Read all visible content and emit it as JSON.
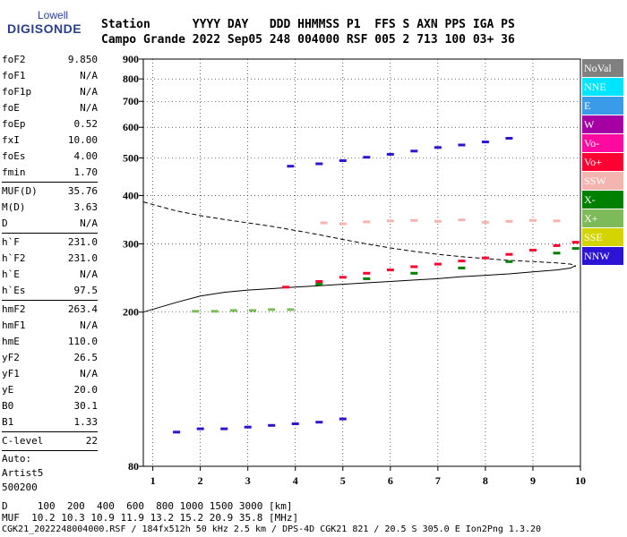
{
  "logo": {
    "top": "Lowell",
    "bottom": "DIGISONDE"
  },
  "header": {
    "line1": "Station      YYYY DAY   DDD HHMMSS P1  FFS S AXN PPS IGA PS",
    "line2": "Campo Grande 2022 Sep05 248 004000 RSF 005 2 713 100 03+ 36"
  },
  "parameters": [
    {
      "name": "foF2",
      "value": "9.850"
    },
    {
      "name": "foF1",
      "value": "N/A"
    },
    {
      "name": "foF1p",
      "value": "N/A"
    },
    {
      "name": "foE",
      "value": "N/A"
    },
    {
      "name": "foEp",
      "value": "0.52"
    },
    {
      "name": "fxI",
      "value": "10.00"
    },
    {
      "name": "foEs",
      "value": "4.00"
    },
    {
      "name": "fmin",
      "value": "1.70"
    },
    {
      "sep": true
    },
    {
      "name": "MUF(D)",
      "value": "35.76"
    },
    {
      "name": "M(D)",
      "value": "3.63"
    },
    {
      "name": "D",
      "value": "N/A"
    },
    {
      "sep": true
    },
    {
      "name": "h`F",
      "value": "231.0"
    },
    {
      "name": "h`F2",
      "value": "231.0"
    },
    {
      "name": "h`E",
      "value": "N/A"
    },
    {
      "name": "h`Es",
      "value": "97.5"
    },
    {
      "sep": true
    },
    {
      "name": "hmF2",
      "value": "263.4"
    },
    {
      "name": "hmF1",
      "value": "N/A"
    },
    {
      "name": "hmE",
      "value": "110.0"
    },
    {
      "name": "yF2",
      "value": "26.5"
    },
    {
      "name": "yF1",
      "value": "N/A"
    },
    {
      "name": "yE",
      "value": "20.0"
    },
    {
      "name": "B0",
      "value": "30.1"
    },
    {
      "name": "B1",
      "value": "1.33"
    },
    {
      "sep": true
    },
    {
      "name": "C-level",
      "value": "22"
    },
    {
      "sep": true
    },
    {
      "text": "Auto:"
    },
    {
      "text": "Artist5"
    },
    {
      "text": "500200"
    }
  ],
  "legend": [
    {
      "label": "NoVal",
      "color": "#808080"
    },
    {
      "label": "NNE",
      "color": "#00e5ff"
    },
    {
      "label": "E",
      "color": "#3a9ce8"
    },
    {
      "label": "W",
      "color": "#a400a4"
    },
    {
      "label": "Vo-",
      "color": "#ff0aa0"
    },
    {
      "label": "Vo+",
      "color": "#ff0033"
    },
    {
      "label": "SSW",
      "color": "#f4b4b0"
    },
    {
      "label": "X-",
      "color": "#008000"
    },
    {
      "label": "X+",
      "color": "#7dbb5a"
    },
    {
      "label": "SSE",
      "color": "#d4d400"
    },
    {
      "label": "NNW",
      "color": "#2b14d4"
    }
  ],
  "footer": {
    "line1": "D     100  200  400  600  800 1000 1500 3000 [km]",
    "line2": "MUF  10.2 10.3 10.9 11.9 13.2 15.2 20.9 35.8 [MHz]",
    "line3": "CGK21_2022248004000.RSF / 184fx512h 50 kHz 2.5 km / DPS-4D CGK21 821 / 20.5 S 305.0 E Ion2Png 1.3.20"
  },
  "chart_data": {
    "type": "scatter",
    "title": "",
    "xlabel": "",
    "ylabel": "",
    "xlim": [
      0.8,
      10
    ],
    "ylim": [
      80,
      900
    ],
    "y_scale": "log",
    "x_ticks": [
      1,
      2,
      3,
      4,
      5,
      6,
      7,
      8,
      9,
      10
    ],
    "y_ticks": [
      80,
      200,
      300,
      400,
      500,
      600,
      700,
      800,
      900
    ],
    "grid": true,
    "echo_traces": [
      {
        "name": "Es trace 2.0-4.0 MHz",
        "color": "#2b14d4",
        "x": [
          1.5,
          2.0,
          2.5,
          3.0,
          3.5,
          4.0,
          4.5,
          5.0
        ],
        "y": [
          98,
          100,
          100,
          101,
          102,
          103,
          104,
          106
        ]
      },
      {
        "name": "Es 2nd hop",
        "color": "#7dbb5a",
        "x": [
          1.9,
          2.3,
          2.7,
          3.1,
          3.5,
          3.9
        ],
        "y": [
          201,
          201,
          202,
          202,
          203,
          203
        ]
      },
      {
        "name": "F2 O-trace",
        "color": "#ff0033",
        "x": [
          3.8,
          4.5,
          5.0,
          5.5,
          6.0,
          6.5,
          7.0,
          7.5,
          8.0,
          8.5,
          9.0,
          9.5,
          9.9
        ],
        "y": [
          232,
          240,
          246,
          252,
          257,
          262,
          266,
          271,
          276,
          282,
          289,
          297,
          303
        ]
      },
      {
        "name": "F2 X-trace",
        "color": "#008000",
        "x": [
          4.5,
          5.5,
          6.5,
          7.5,
          8.5,
          9.5,
          9.9
        ],
        "y": [
          236,
          244,
          252,
          260,
          270,
          284,
          292
        ]
      },
      {
        "name": "F 2nd hop",
        "color": "#2b14d4",
        "x": [
          3.9,
          4.5,
          5.0,
          5.5,
          6.0,
          6.5,
          7.0,
          7.5,
          8.0,
          8.5
        ],
        "y": [
          476,
          483,
          492,
          502,
          511,
          521,
          532,
          540,
          550,
          562
        ]
      },
      {
        "name": "Spread SSW",
        "color": "#f4b4b0",
        "x": [
          4.6,
          5.0,
          5.5,
          6.0,
          6.5,
          7.0,
          7.5,
          8.0,
          8.5,
          9.0,
          9.5
        ],
        "y": [
          340,
          338,
          342,
          344,
          345,
          343,
          346,
          341,
          343,
          345,
          344
        ]
      }
    ],
    "model_profiles": [
      {
        "name": "dashed",
        "style": "dashed",
        "x": [
          0.8,
          1.5,
          2.0,
          2.5,
          3.0,
          3.5,
          4.0,
          4.5,
          5.0,
          5.5,
          6.0,
          6.5,
          7.0,
          7.5,
          8.0,
          8.5,
          9.0,
          9.5,
          9.8,
          9.9
        ],
        "y": [
          385,
          365,
          355,
          347,
          340,
          333,
          325,
          317,
          308,
          300,
          293,
          287,
          282,
          278,
          275,
          272,
          270,
          268,
          266,
          262
        ]
      },
      {
        "name": "solid",
        "style": "solid",
        "x": [
          0.8,
          1.5,
          2.0,
          2.5,
          3.0,
          3.5,
          4.0,
          4.5,
          5.0,
          5.5,
          6.0,
          6.5,
          7.0,
          7.5,
          8.0,
          8.5,
          9.0,
          9.5,
          9.8,
          9.9
        ],
        "y": [
          200,
          212,
          220,
          225,
          228,
          230,
          232,
          234,
          236,
          238,
          240,
          242,
          244,
          247,
          249,
          251,
          254,
          257,
          260,
          264
        ]
      }
    ]
  }
}
